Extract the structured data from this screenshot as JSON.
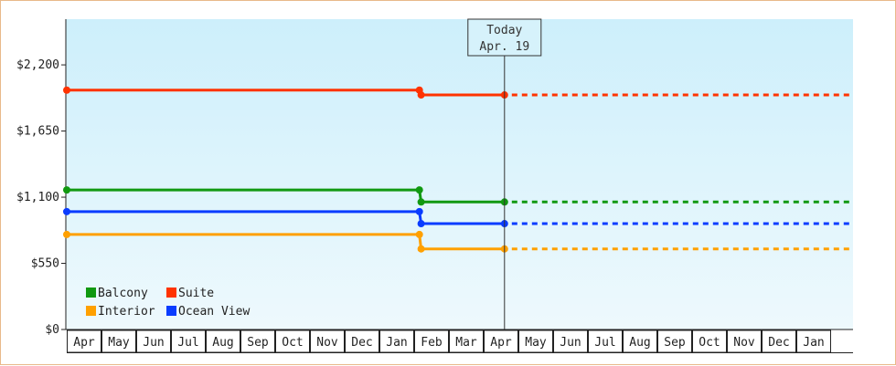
{
  "chart_data": {
    "type": "line",
    "title": "",
    "xlabel": "",
    "ylabel": "",
    "y_ticks": [
      {
        "value": 0,
        "label": "$0"
      },
      {
        "value": 550,
        "label": "$550"
      },
      {
        "value": 1100,
        "label": "$1,100"
      },
      {
        "value": 1650,
        "label": "$1,650"
      },
      {
        "value": 2200,
        "label": "$2,200"
      }
    ],
    "ylim": [
      0,
      2580
    ],
    "x_months": [
      "Apr",
      "May",
      "Jun",
      "Jul",
      "Aug",
      "Sep",
      "Oct",
      "Nov",
      "Dec",
      "Jan",
      "Feb",
      "Mar",
      "Apr",
      "May",
      "Jun",
      "Jul",
      "Aug",
      "Sep",
      "Oct",
      "Nov",
      "Dec",
      "Jan"
    ],
    "x_range_months": [
      0,
      22.65
    ],
    "today": {
      "title": "Today",
      "date": "Apr. 19",
      "x": 12.6
    },
    "series": [
      {
        "name": "Suite",
        "color": "#ff3300",
        "points": [
          {
            "x": 0,
            "y": 1990
          },
          {
            "x": 10.15,
            "y": 1990
          },
          {
            "x": 10.2,
            "y": 1950
          },
          {
            "x": 12.6,
            "y": 1950
          }
        ],
        "projected_y": 1950
      },
      {
        "name": "Balcony",
        "color": "#119911",
        "points": [
          {
            "x": 0,
            "y": 1160
          },
          {
            "x": 10.15,
            "y": 1160
          },
          {
            "x": 10.2,
            "y": 1060
          },
          {
            "x": 12.6,
            "y": 1060
          }
        ],
        "projected_y": 1060
      },
      {
        "name": "Ocean View",
        "color": "#0a3cff",
        "points": [
          {
            "x": 0,
            "y": 980
          },
          {
            "x": 10.15,
            "y": 980
          },
          {
            "x": 10.2,
            "y": 880
          },
          {
            "x": 12.6,
            "y": 880
          }
        ],
        "projected_y": 880
      },
      {
        "name": "Interior",
        "color": "#ffa000",
        "points": [
          {
            "x": 0,
            "y": 790
          },
          {
            "x": 10.15,
            "y": 790
          },
          {
            "x": 10.2,
            "y": 670
          },
          {
            "x": 12.6,
            "y": 670
          }
        ],
        "projected_y": 670
      }
    ],
    "legend": {
      "position": "bottom-left",
      "rows": [
        [
          "Balcony",
          "Suite"
        ],
        [
          "Interior",
          "Ocean View"
        ]
      ]
    },
    "grid": false
  }
}
